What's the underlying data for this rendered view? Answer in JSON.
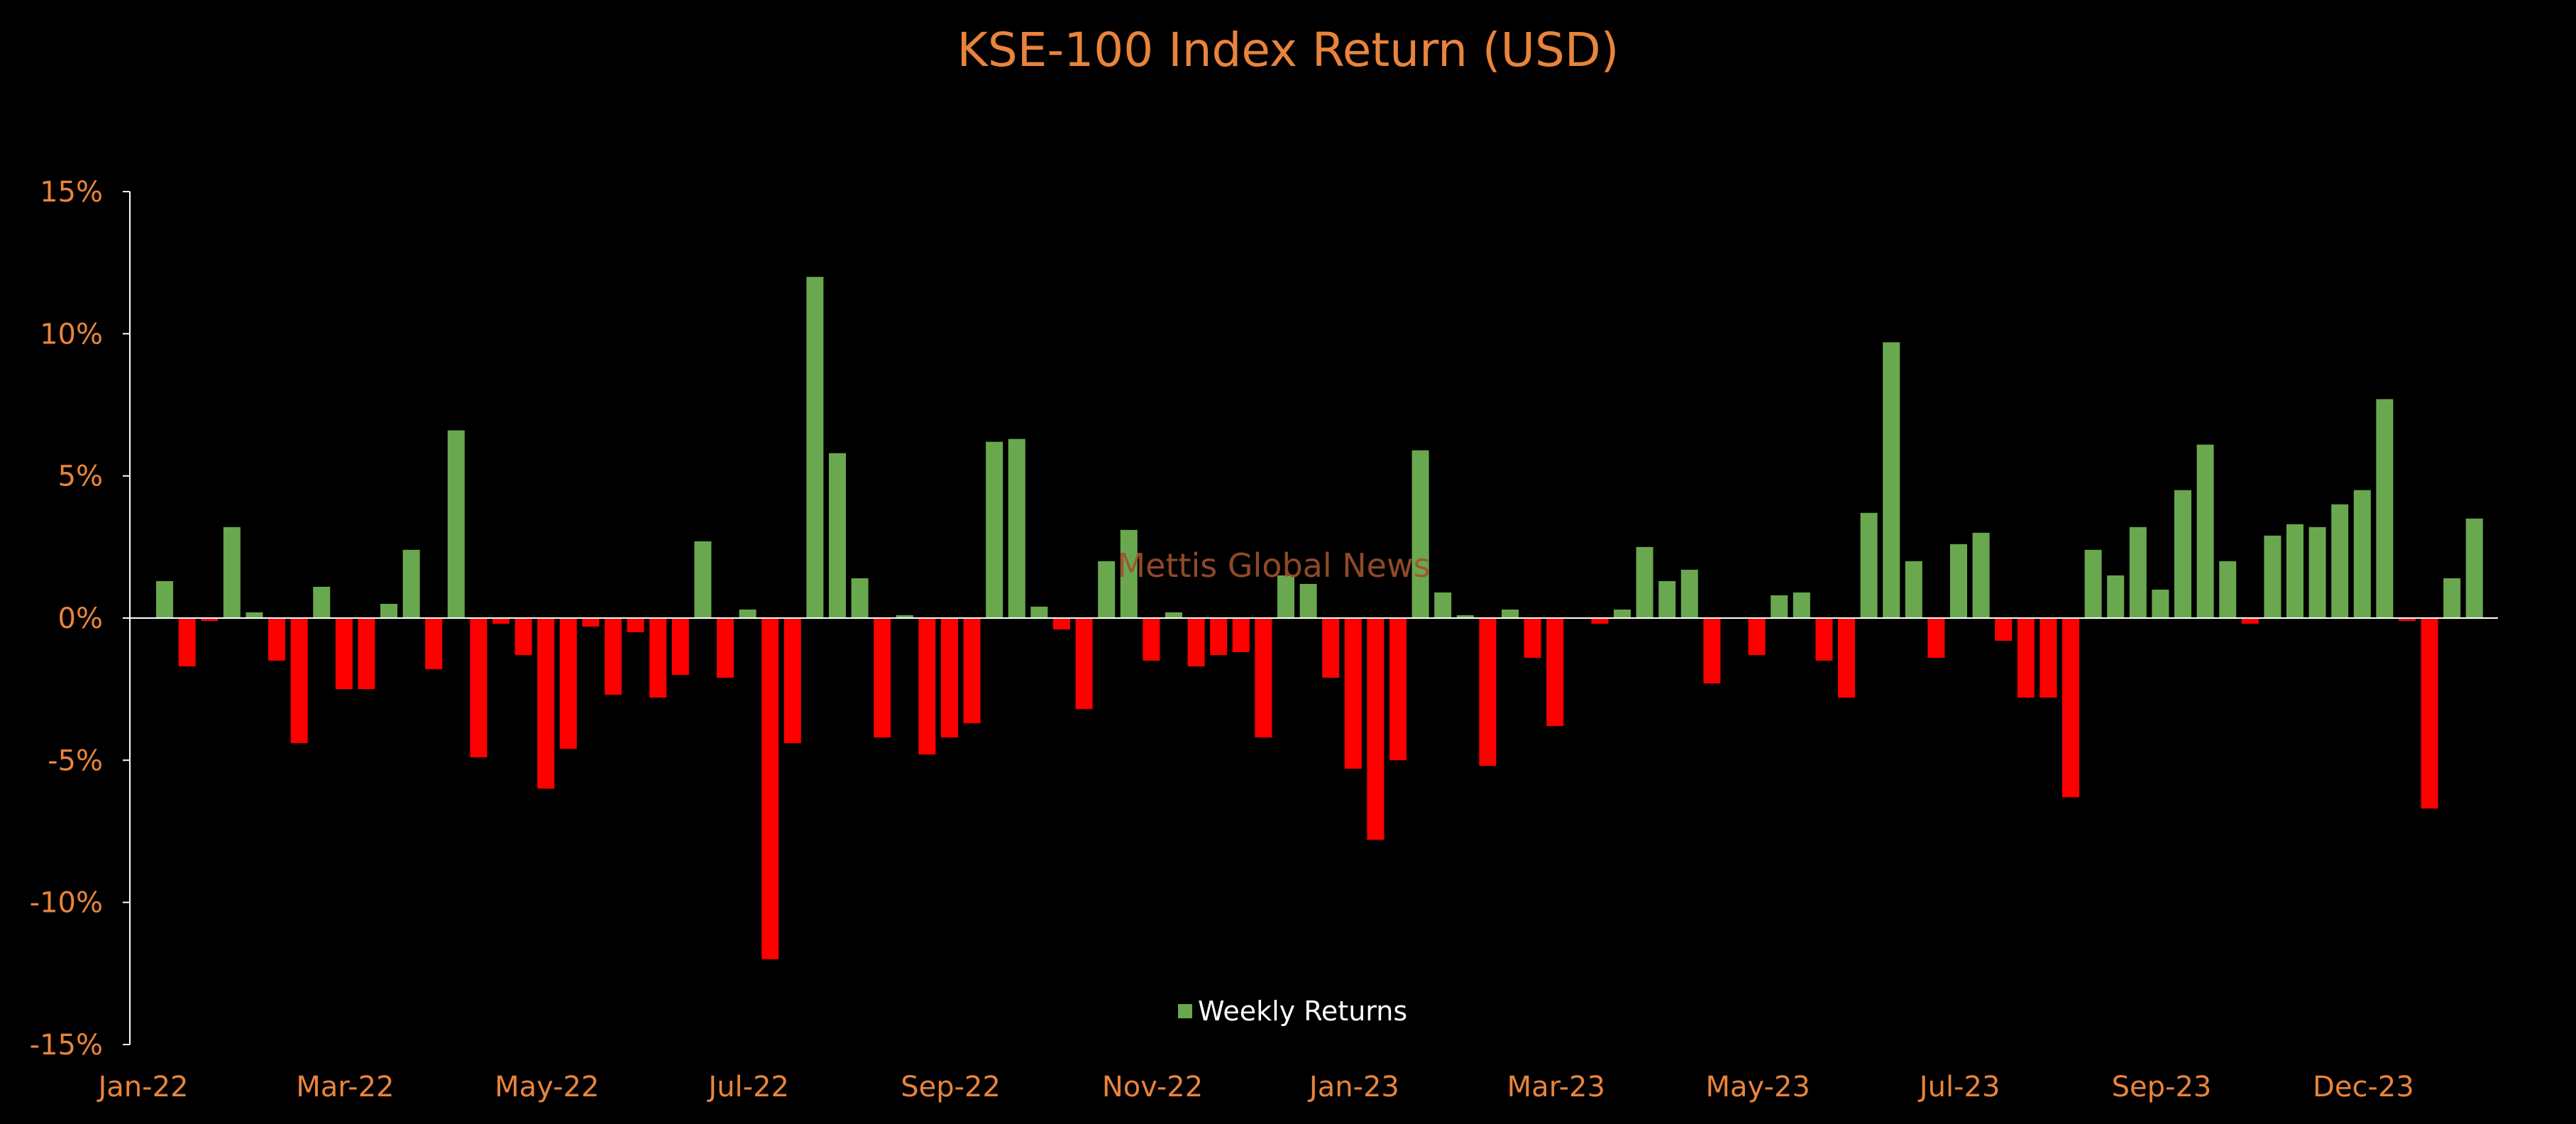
{
  "chart_data": {
    "type": "bar",
    "title": "KSE-100 Index Return (USD)",
    "watermark": "Mettis Global News",
    "legend": {
      "label": "Weekly Returns",
      "placement": "bottom-center"
    },
    "colors": {
      "positive": "#6AA84F",
      "negative": "#FF0000",
      "text": "#E8843C",
      "axis": "#FFFFFF"
    },
    "ylim": [
      -15,
      15
    ],
    "y_ticks": [
      {
        "value": 15,
        "label": "15%"
      },
      {
        "value": 10,
        "label": "10%"
      },
      {
        "value": 5,
        "label": "5%"
      },
      {
        "value": 0,
        "label": "0%"
      },
      {
        "value": -5,
        "label": "-5%"
      },
      {
        "value": -10,
        "label": "-10%"
      },
      {
        "value": -15,
        "label": "-15%"
      }
    ],
    "x_ticks": [
      {
        "index": 0,
        "label": "Jan-22"
      },
      {
        "index": 9,
        "label": "Mar-22"
      },
      {
        "index": 18,
        "label": "May-22"
      },
      {
        "index": 27,
        "label": "Jul-22"
      },
      {
        "index": 36,
        "label": "Sep-22"
      },
      {
        "index": 45,
        "label": "Nov-22"
      },
      {
        "index": 54,
        "label": "Jan-23"
      },
      {
        "index": 63,
        "label": "Mar-23"
      },
      {
        "index": 72,
        "label": "May-23"
      },
      {
        "index": 81,
        "label": "Jul-23"
      },
      {
        "index": 90,
        "label": "Sep-23"
      },
      {
        "index": 99,
        "label": "Dec-23"
      }
    ],
    "series": [
      {
        "name": "Weekly Returns",
        "values": [
          1.3,
          -1.7,
          -0.1,
          3.2,
          0.2,
          -1.5,
          -4.4,
          1.1,
          -2.5,
          -2.5,
          0.5,
          2.4,
          -1.8,
          6.6,
          -4.9,
          -0.2,
          -1.3,
          -6.0,
          -4.6,
          -0.3,
          -2.7,
          -0.5,
          -2.8,
          -2.0,
          2.7,
          -2.1,
          0.3,
          -12.0,
          -4.4,
          12.0,
          5.8,
          1.4,
          -4.2,
          0.1,
          -4.8,
          -4.2,
          -3.7,
          6.2,
          6.3,
          0.4,
          -0.4,
          -3.2,
          2.0,
          3.1,
          -1.5,
          0.2,
          -1.7,
          -1.3,
          -1.2,
          -4.2,
          1.5,
          1.2,
          -2.1,
          -5.3,
          -7.8,
          -5.0,
          5.9,
          0.9,
          0.1,
          -5.2,
          0.3,
          -1.4,
          -3.8,
          0.0,
          -0.2,
          0.3,
          2.5,
          1.3,
          1.7,
          -2.3,
          0.0,
          -1.3,
          0.8,
          0.9,
          -1.5,
          -2.8,
          3.7,
          9.7,
          2.0,
          -1.4,
          2.6,
          3.0,
          -0.8,
          -2.8,
          -2.8,
          -6.3,
          2.4,
          1.5,
          3.2,
          1.0,
          4.5,
          6.1,
          2.0,
          -0.2,
          2.9,
          3.3,
          3.2,
          4.0,
          4.5,
          7.7,
          -0.1,
          -6.7,
          1.4,
          3.5
        ]
      }
    ]
  }
}
